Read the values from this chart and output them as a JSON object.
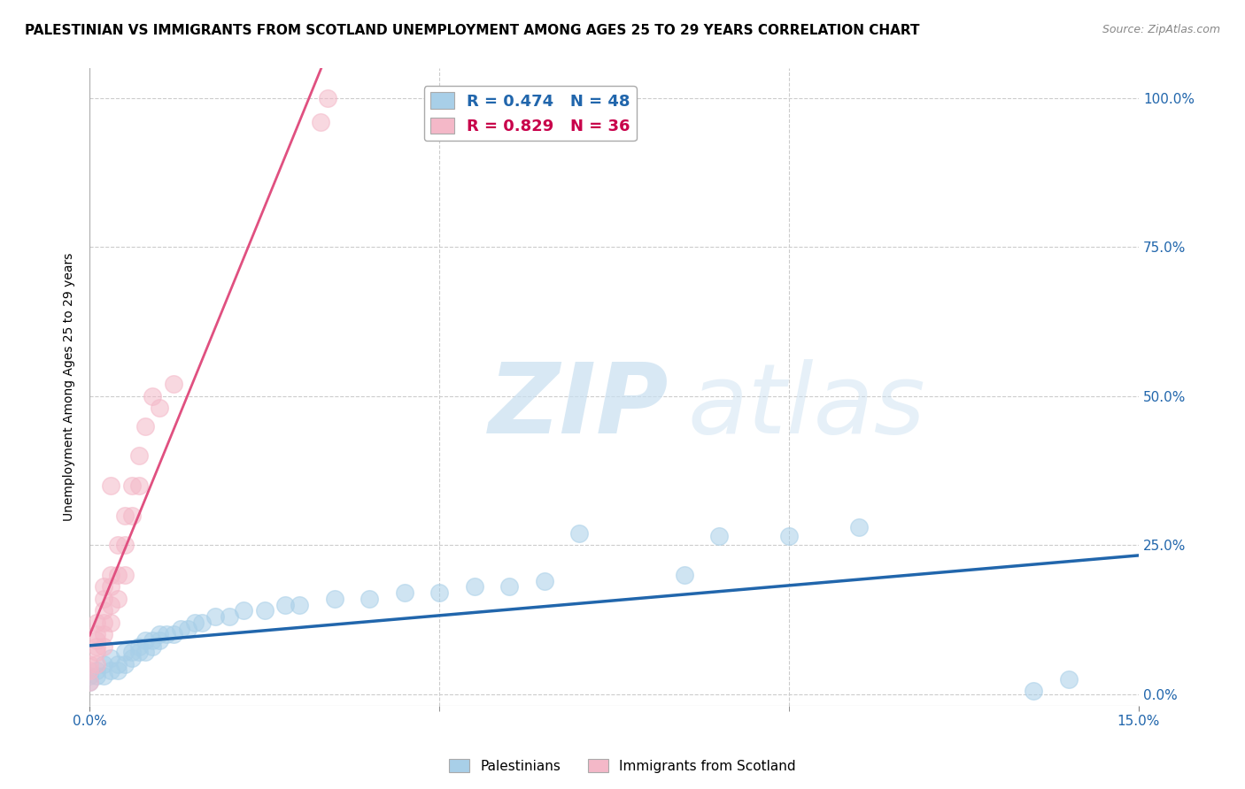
{
  "title": "PALESTINIAN VS IMMIGRANTS FROM SCOTLAND UNEMPLOYMENT AMONG AGES 25 TO 29 YEARS CORRELATION CHART",
  "source": "Source: ZipAtlas.com",
  "ylabel_label": "Unemployment Among Ages 25 to 29 years",
  "legend_blue": {
    "R": 0.474,
    "N": 48,
    "label": "Palestinians"
  },
  "legend_pink": {
    "R": 0.829,
    "N": 36,
    "label": "Immigrants from Scotland"
  },
  "blue_color": "#a8cfe8",
  "pink_color": "#f4b8c8",
  "blue_line_color": "#2166ac",
  "pink_line_color": "#e05080",
  "blue_scatter": [
    [
      0.0,
      0.02
    ],
    [
      0.0,
      0.03
    ],
    [
      0.001,
      0.03
    ],
    [
      0.001,
      0.04
    ],
    [
      0.002,
      0.03
    ],
    [
      0.002,
      0.05
    ],
    [
      0.003,
      0.04
    ],
    [
      0.003,
      0.06
    ],
    [
      0.004,
      0.04
    ],
    [
      0.004,
      0.05
    ],
    [
      0.005,
      0.05
    ],
    [
      0.005,
      0.07
    ],
    [
      0.006,
      0.06
    ],
    [
      0.006,
      0.07
    ],
    [
      0.007,
      0.07
    ],
    [
      0.007,
      0.08
    ],
    [
      0.008,
      0.07
    ],
    [
      0.008,
      0.09
    ],
    [
      0.009,
      0.08
    ],
    [
      0.009,
      0.09
    ],
    [
      0.01,
      0.09
    ],
    [
      0.01,
      0.1
    ],
    [
      0.011,
      0.1
    ],
    [
      0.012,
      0.1
    ],
    [
      0.013,
      0.11
    ],
    [
      0.014,
      0.11
    ],
    [
      0.015,
      0.12
    ],
    [
      0.016,
      0.12
    ],
    [
      0.018,
      0.13
    ],
    [
      0.02,
      0.13
    ],
    [
      0.022,
      0.14
    ],
    [
      0.025,
      0.14
    ],
    [
      0.028,
      0.15
    ],
    [
      0.03,
      0.15
    ],
    [
      0.035,
      0.16
    ],
    [
      0.04,
      0.16
    ],
    [
      0.045,
      0.17
    ],
    [
      0.05,
      0.17
    ],
    [
      0.055,
      0.18
    ],
    [
      0.06,
      0.18
    ],
    [
      0.065,
      0.19
    ],
    [
      0.07,
      0.27
    ],
    [
      0.085,
      0.2
    ],
    [
      0.09,
      0.265
    ],
    [
      0.1,
      0.265
    ],
    [
      0.11,
      0.28
    ],
    [
      0.135,
      0.005
    ],
    [
      0.14,
      0.025
    ]
  ],
  "pink_scatter": [
    [
      0.0,
      0.02
    ],
    [
      0.0,
      0.04
    ],
    [
      0.0,
      0.05
    ],
    [
      0.001,
      0.05
    ],
    [
      0.001,
      0.07
    ],
    [
      0.001,
      0.08
    ],
    [
      0.001,
      0.09
    ],
    [
      0.001,
      0.1
    ],
    [
      0.001,
      0.12
    ],
    [
      0.002,
      0.08
    ],
    [
      0.002,
      0.1
    ],
    [
      0.002,
      0.12
    ],
    [
      0.002,
      0.14
    ],
    [
      0.002,
      0.16
    ],
    [
      0.002,
      0.18
    ],
    [
      0.003,
      0.12
    ],
    [
      0.003,
      0.15
    ],
    [
      0.003,
      0.18
    ],
    [
      0.003,
      0.2
    ],
    [
      0.003,
      0.35
    ],
    [
      0.004,
      0.16
    ],
    [
      0.004,
      0.2
    ],
    [
      0.004,
      0.25
    ],
    [
      0.005,
      0.2
    ],
    [
      0.005,
      0.25
    ],
    [
      0.005,
      0.3
    ],
    [
      0.006,
      0.3
    ],
    [
      0.006,
      0.35
    ],
    [
      0.007,
      0.35
    ],
    [
      0.007,
      0.4
    ],
    [
      0.008,
      0.45
    ],
    [
      0.009,
      0.5
    ],
    [
      0.01,
      0.48
    ],
    [
      0.012,
      0.52
    ],
    [
      0.033,
      0.96
    ],
    [
      0.034,
      1.0
    ]
  ],
  "xlim": [
    0.0,
    0.15
  ],
  "ylim": [
    -0.02,
    1.05
  ],
  "xaxis_ticks": [
    0.0,
    0.15
  ],
  "xaxis_minor_ticks": [
    0.05,
    0.1
  ],
  "yaxis_ticks": [
    0.0,
    0.25,
    0.5,
    0.75,
    1.0
  ],
  "grid_color": "#cccccc",
  "background_color": "#ffffff"
}
